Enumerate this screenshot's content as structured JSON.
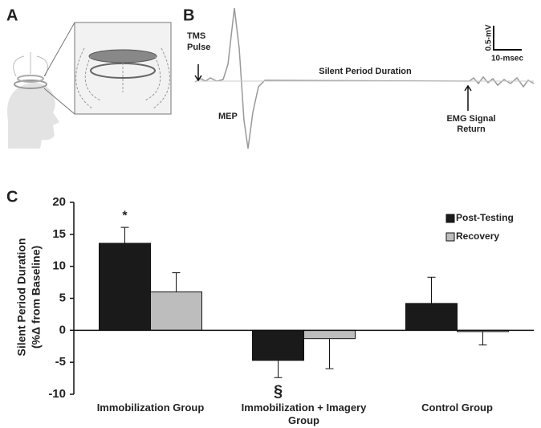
{
  "panel_labels": [
    "A",
    "B",
    "C"
  ],
  "trace": {
    "tms_pulse": [
      "TMS",
      "Pulse"
    ],
    "mep": "MEP",
    "silent_period": "Silent Period Duration",
    "emg_return": [
      "EMG Signal",
      "Return"
    ],
    "scale_y": "0.5-mV",
    "scale_x": "10-msec"
  },
  "chart_data": {
    "type": "bar",
    "ylabel": [
      "Silent Period Duration",
      "(%Δ  from Baseline)"
    ],
    "categories": [
      "Immobilization Group",
      "Immobilization + Imagery Group",
      "Control Group"
    ],
    "series": [
      {
        "name": "Post-Testing",
        "color": "#1a1a1a",
        "values": [
          13.6,
          -4.7,
          4.2
        ],
        "errors": [
          2.5,
          2.7,
          4.1
        ]
      },
      {
        "name": "Recovery",
        "color": "#bdbdbd",
        "values": [
          6.0,
          -1.3,
          -0.2
        ],
        "errors": [
          3.0,
          4.7,
          2.1
        ]
      }
    ],
    "annotations": [
      "*",
      "§"
    ],
    "ylim": [
      -10,
      20
    ],
    "yticks": [
      -10,
      -5,
      0,
      5,
      10,
      15,
      20
    ],
    "legend": "upper right"
  }
}
